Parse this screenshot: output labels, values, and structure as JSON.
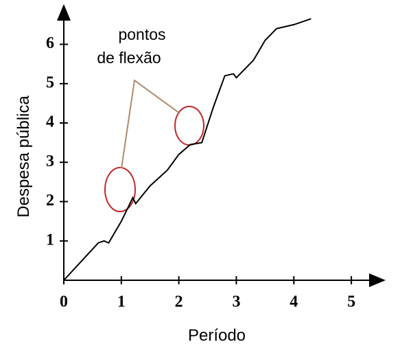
{
  "chart_data": {
    "type": "line",
    "x_label": "Período",
    "y_label": "Despesa pública",
    "annotation": [
      "pontos",
      "de flexão"
    ],
    "x": [
      0,
      0.6,
      0.7,
      0.78,
      1.0,
      1.2,
      1.25,
      1.5,
      1.8,
      2.0,
      2.2,
      2.4,
      2.6,
      2.8,
      2.95,
      3.0,
      3.3,
      3.5,
      3.7,
      4.0,
      4.3
    ],
    "series": [
      {
        "color": "#000000",
        "values": [
          0,
          0.95,
          1.0,
          0.95,
          1.5,
          2.1,
          1.95,
          2.4,
          2.8,
          3.2,
          3.45,
          3.5,
          4.4,
          5.2,
          5.25,
          5.15,
          5.6,
          6.1,
          6.4,
          6.5,
          6.65
        ]
      }
    ],
    "xlim": [
      0,
      5.5
    ],
    "ylim": [
      0,
      6.9
    ],
    "xticks": [
      0,
      1,
      2,
      3,
      4,
      5
    ],
    "yticks": [
      1,
      2,
      3,
      4,
      5,
      6
    ],
    "grid": false
  }
}
